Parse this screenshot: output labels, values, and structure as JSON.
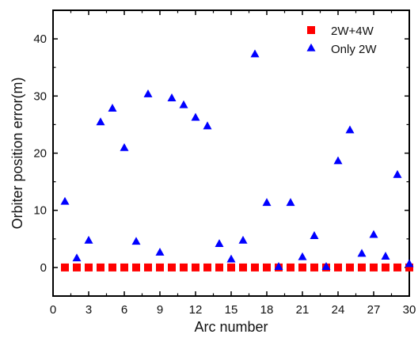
{
  "chart_data": {
    "type": "scatter",
    "title": "",
    "xlabel": "Arc number",
    "ylabel": "Orbiter position error(m)",
    "xlim": [
      0,
      30
    ],
    "ylim": [
      -5,
      45
    ],
    "x_ticks": [
      0,
      3,
      6,
      9,
      12,
      15,
      18,
      21,
      24,
      27,
      30
    ],
    "y_ticks": [
      0,
      10,
      20,
      30,
      40
    ],
    "grid": false,
    "legend_position": "top-right",
    "series": [
      {
        "name": "2W+4W",
        "marker": "square",
        "color": "#ff0000",
        "x": [
          1,
          2,
          3,
          4,
          5,
          6,
          7,
          8,
          9,
          10,
          11,
          12,
          13,
          14,
          15,
          16,
          17,
          18,
          19,
          20,
          21,
          22,
          23,
          24,
          25,
          26,
          27,
          28,
          29,
          30
        ],
        "y": [
          0,
          0,
          0,
          0,
          0,
          0,
          0,
          0,
          0,
          0,
          0,
          0,
          0,
          0,
          0,
          0,
          0,
          0,
          0,
          0,
          0,
          0,
          0,
          0,
          0,
          0,
          0,
          0,
          0,
          0
        ]
      },
      {
        "name": "Only 2W",
        "marker": "triangle",
        "color": "#0000ff",
        "x": [
          1,
          2,
          3,
          4,
          5,
          6,
          7,
          8,
          9,
          10,
          11,
          12,
          13,
          14,
          15,
          16,
          17,
          18,
          19,
          20,
          21,
          22,
          23,
          24,
          25,
          26,
          27,
          28,
          29,
          30
        ],
        "y": [
          11.5,
          1.6,
          4.7,
          25.4,
          27.8,
          20.9,
          4.5,
          30.3,
          2.6,
          29.6,
          28.4,
          26.2,
          24.7,
          4.1,
          1.4,
          4.7,
          37.3,
          11.3,
          0.1,
          11.3,
          1.8,
          5.5,
          0.1,
          18.6,
          24.0,
          2.4,
          5.7,
          1.9,
          16.2,
          0.6
        ]
      }
    ]
  }
}
